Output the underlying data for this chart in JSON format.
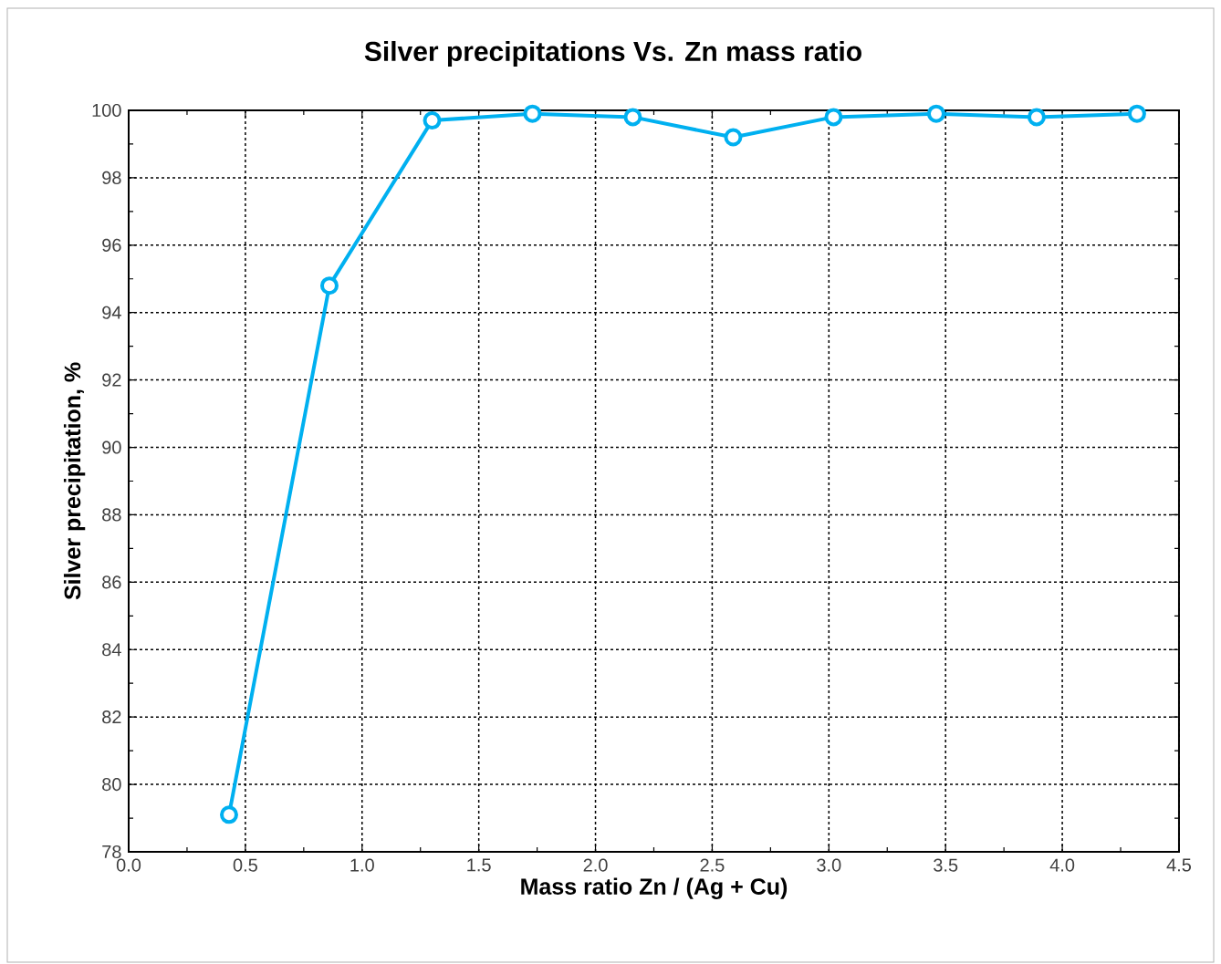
{
  "chart_data": {
    "type": "line",
    "title": "Silver precipitations Vs. Zn mass ratio",
    "xlabel": "Mass ratio Zn / (Ag + Cu)",
    "ylabel": "Silver precipitation, %",
    "x": [
      0.43,
      0.86,
      1.3,
      1.73,
      2.16,
      2.59,
      3.02,
      3.46,
      3.89,
      4.32
    ],
    "series": [
      {
        "color": "#00b0f0",
        "values": [
          79.1,
          94.8,
          99.7,
          99.9,
          99.8,
          99.2,
          99.8,
          99.9,
          99.8,
          99.9
        ]
      }
    ],
    "xlim": [
      0,
      4.5
    ],
    "ylim": [
      78,
      100
    ],
    "xticks": [
      {
        "value": 0,
        "label": "0.0"
      },
      {
        "value": 0.5,
        "label": "0.5"
      },
      {
        "value": 1,
        "label": "1.0"
      },
      {
        "value": 1.5,
        "label": "1.5"
      },
      {
        "value": 2,
        "label": "2.0"
      },
      {
        "value": 2.5,
        "label": "2.5"
      },
      {
        "value": 3,
        "label": "3.0"
      },
      {
        "value": 3.5,
        "label": "3.5"
      },
      {
        "value": 4,
        "label": "4.0"
      },
      {
        "value": 4.5,
        "label": "4.5"
      }
    ],
    "yticks": [
      78,
      80,
      82,
      84,
      86,
      88,
      90,
      92,
      94,
      96,
      98,
      100
    ],
    "grid": true,
    "marker": "circle",
    "line_style": "solid"
  }
}
